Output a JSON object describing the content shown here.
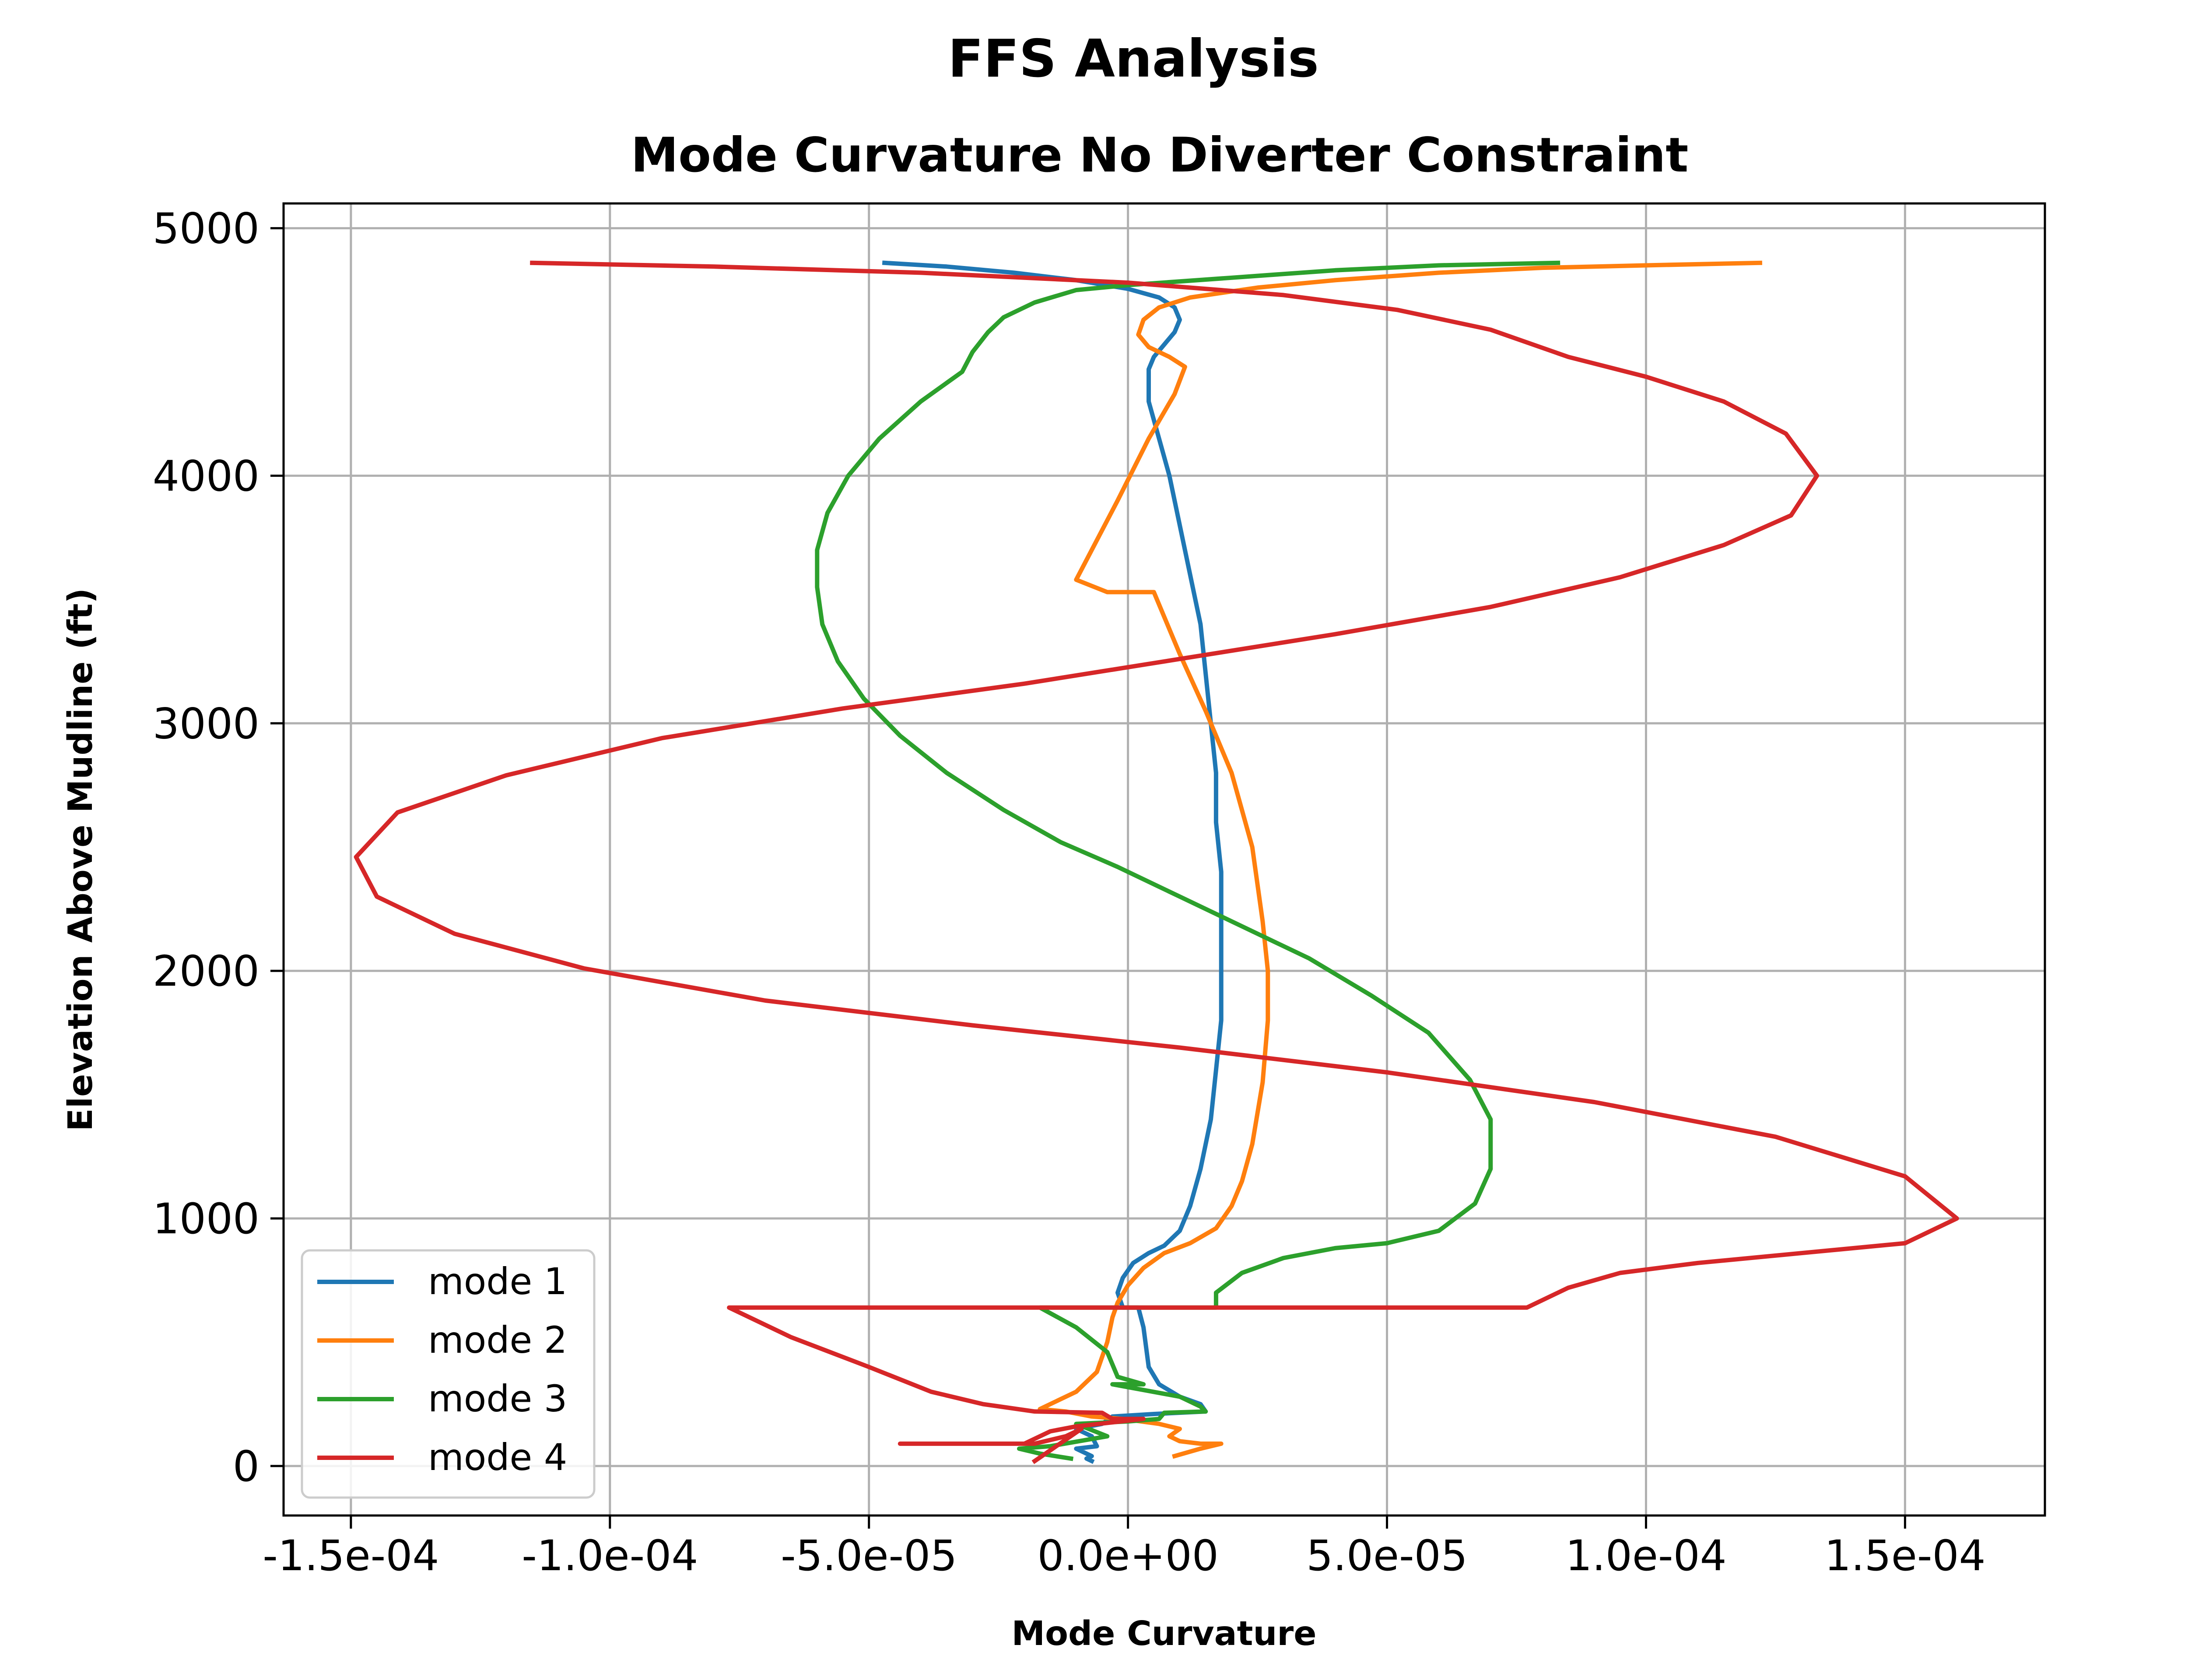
{
  "figure_title": "FFS Analysis",
  "chart_data": {
    "type": "line",
    "title": "Mode Curvature No Diverter Constraint",
    "xlabel": "Mode Curvature",
    "ylabel": "Elevation Above Mudline (ft)",
    "xlim": [
      -0.000163,
      0.000177
    ],
    "ylim": [
      -200,
      5100
    ],
    "xticks": [
      -0.00015,
      -0.0001,
      -5e-05,
      0,
      5e-05,
      0.0001,
      0.00015
    ],
    "xtick_labels": [
      "-1.5e-04",
      "-1.0e-04",
      "-5.0e-05",
      "0.0e+00",
      "5.0e-05",
      "1.0e-04",
      "1.5e-04"
    ],
    "yticks": [
      0,
      1000,
      2000,
      3000,
      4000,
      5000
    ],
    "ytick_labels": [
      "0",
      "1000",
      "2000",
      "3000",
      "4000",
      "5000"
    ],
    "grid": true,
    "legend_position": "lower-left",
    "series": [
      {
        "name": "mode 1",
        "color": "#1f77b4",
        "points": [
          [
            -4.7e-05,
            4860
          ],
          [
            -3.5e-05,
            4845
          ],
          [
            -2.2e-05,
            4820
          ],
          [
            -1e-05,
            4790
          ],
          [
            0.0,
            4755
          ],
          [
            6e-06,
            4720
          ],
          [
            9e-06,
            4680
          ],
          [
            1e-05,
            4630
          ],
          [
            9e-06,
            4580
          ],
          [
            7e-06,
            4530
          ],
          [
            5e-06,
            4480
          ],
          [
            4e-06,
            4430
          ],
          [
            4e-06,
            4380
          ],
          [
            4e-06,
            4300
          ],
          [
            6e-06,
            4150
          ],
          [
            8e-06,
            4000
          ],
          [
            1e-05,
            3800
          ],
          [
            1.2e-05,
            3600
          ],
          [
            1.4e-05,
            3400
          ],
          [
            1.5e-05,
            3200
          ],
          [
            1.6e-05,
            3000
          ],
          [
            1.7e-05,
            2800
          ],
          [
            1.7e-05,
            2600
          ],
          [
            1.8e-05,
            2400
          ],
          [
            1.8e-05,
            2200
          ],
          [
            1.8e-05,
            2000
          ],
          [
            1.8e-05,
            1800
          ],
          [
            1.7e-05,
            1600
          ],
          [
            1.6e-05,
            1400
          ],
          [
            1.4e-05,
            1200
          ],
          [
            1.2e-05,
            1050
          ],
          [
            1e-05,
            950
          ],
          [
            7e-06,
            890
          ],
          [
            4e-06,
            860
          ],
          [
            1e-06,
            820
          ],
          [
            -1e-06,
            760
          ],
          [
            -2e-06,
            700
          ],
          [
            -1e-06,
            640
          ],
          [
            2e-06,
            640
          ],
          [
            3e-06,
            560
          ],
          [
            4e-06,
            400
          ],
          [
            6e-06,
            330
          ],
          [
            1e-05,
            280
          ],
          [
            1.4e-05,
            250
          ],
          [
            1.5e-05,
            220
          ],
          [
            5e-06,
            210
          ],
          [
            -3e-06,
            200
          ],
          [
            -5e-06,
            170
          ],
          [
            -1e-05,
            150
          ],
          [
            -7e-06,
            120
          ],
          [
            -6e-06,
            80
          ],
          [
            -1e-05,
            70
          ],
          [
            -7e-06,
            40
          ],
          [
            -8e-06,
            30
          ],
          [
            -7e-06,
            20
          ]
        ]
      },
      {
        "name": "mode 2",
        "color": "#ff7f0e",
        "points": [
          [
            0.000122,
            4860
          ],
          [
            0.0001,
            4850
          ],
          [
            8e-05,
            4840
          ],
          [
            6e-05,
            4820
          ],
          [
            4e-05,
            4790
          ],
          [
            2.5e-05,
            4760
          ],
          [
            1.2e-05,
            4720
          ],
          [
            6e-06,
            4680
          ],
          [
            3e-06,
            4630
          ],
          [
            2e-06,
            4570
          ],
          [
            4e-06,
            4520
          ],
          [
            8e-06,
            4480
          ],
          [
            1.1e-05,
            4440
          ],
          [
            9e-06,
            4330
          ],
          [
            4e-06,
            4150
          ],
          [
            -2e-06,
            3900
          ],
          [
            -7e-06,
            3700
          ],
          [
            -1e-05,
            3580
          ],
          [
            -4e-06,
            3530
          ],
          [
            5e-06,
            3530
          ],
          [
            1e-05,
            3280
          ],
          [
            1.5e-05,
            3050
          ],
          [
            2e-05,
            2800
          ],
          [
            2.4e-05,
            2500
          ],
          [
            2.6e-05,
            2200
          ],
          [
            2.7e-05,
            2000
          ],
          [
            2.7e-05,
            1800
          ],
          [
            2.6e-05,
            1550
          ],
          [
            2.4e-05,
            1300
          ],
          [
            2.2e-05,
            1150
          ],
          [
            2e-05,
            1050
          ],
          [
            1.7e-05,
            960
          ],
          [
            1.2e-05,
            900
          ],
          [
            7e-06,
            860
          ],
          [
            3e-06,
            800
          ],
          [
            0.0,
            730
          ],
          [
            -2e-06,
            660
          ],
          [
            -3e-06,
            600
          ],
          [
            -4e-06,
            500
          ],
          [
            -6e-06,
            380
          ],
          [
            -1e-05,
            300
          ],
          [
            -1.7e-05,
            230
          ],
          [
            -1.2e-05,
            220
          ],
          [
            -7e-06,
            200
          ],
          [
            -1e-06,
            190
          ],
          [
            6e-06,
            170
          ],
          [
            1e-05,
            150
          ],
          [
            8e-06,
            120
          ],
          [
            1e-05,
            100
          ],
          [
            1.4e-05,
            90
          ],
          [
            1.8e-05,
            90
          ],
          [
            1.4e-05,
            70
          ],
          [
            9e-06,
            40
          ]
        ]
      },
      {
        "name": "mode 3",
        "color": "#2ca02c",
        "points": [
          [
            8.3e-05,
            4860
          ],
          [
            6e-05,
            4850
          ],
          [
            4e-05,
            4830
          ],
          [
            2e-05,
            4800
          ],
          [
            0.0,
            4770
          ],
          [
            -1e-05,
            4750
          ],
          [
            -1.8e-05,
            4700
          ],
          [
            -2.4e-05,
            4640
          ],
          [
            -2.7e-05,
            4580
          ],
          [
            -3e-05,
            4500
          ],
          [
            -3.2e-05,
            4420
          ],
          [
            -4e-05,
            4300
          ],
          [
            -4.8e-05,
            4150
          ],
          [
            -5.4e-05,
            4000
          ],
          [
            -5.8e-05,
            3850
          ],
          [
            -6e-05,
            3700
          ],
          [
            -6e-05,
            3550
          ],
          [
            -5.9e-05,
            3400
          ],
          [
            -5.6e-05,
            3250
          ],
          [
            -5.1e-05,
            3100
          ],
          [
            -4.4e-05,
            2950
          ],
          [
            -3.5e-05,
            2800
          ],
          [
            -2.4e-05,
            2650
          ],
          [
            -1.3e-05,
            2520
          ],
          [
            -2e-06,
            2420
          ],
          [
            1e-05,
            2300
          ],
          [
            2.2e-05,
            2180
          ],
          [
            3.5e-05,
            2050
          ],
          [
            4.7e-05,
            1900
          ],
          [
            5.8e-05,
            1750
          ],
          [
            6.6e-05,
            1560
          ],
          [
            7e-05,
            1400
          ],
          [
            7e-05,
            1200
          ],
          [
            6.7e-05,
            1060
          ],
          [
            6e-05,
            950
          ],
          [
            5e-05,
            900
          ],
          [
            4e-05,
            880
          ],
          [
            3e-05,
            840
          ],
          [
            2.2e-05,
            780
          ],
          [
            1.7e-05,
            700
          ],
          [
            1.7e-05,
            640
          ],
          [
            -1.7e-05,
            640
          ],
          [
            -1e-05,
            560
          ],
          [
            -4e-06,
            460
          ],
          [
            -2e-06,
            360
          ],
          [
            3e-06,
            330
          ],
          [
            -3e-06,
            330
          ],
          [
            1e-05,
            280
          ],
          [
            1.4e-05,
            240
          ],
          [
            1.5e-05,
            220
          ],
          [
            7e-06,
            215
          ],
          [
            6e-06,
            190
          ],
          [
            0.0,
            180
          ],
          [
            -1e-05,
            170
          ],
          [
            -4e-06,
            120
          ],
          [
            -1.5e-05,
            80
          ],
          [
            -2.1e-05,
            70
          ],
          [
            -1.7e-05,
            50
          ],
          [
            -1.1e-05,
            30
          ]
        ]
      },
      {
        "name": "mode 4",
        "color": "#d62728",
        "points": [
          [
            -0.000115,
            4860
          ],
          [
            -8e-05,
            4845
          ],
          [
            -4e-05,
            4820
          ],
          [
            0.0,
            4780
          ],
          [
            3e-05,
            4730
          ],
          [
            5.2e-05,
            4670
          ],
          [
            7e-05,
            4590
          ],
          [
            8.5e-05,
            4480
          ],
          [
            0.0001,
            4400
          ],
          [
            0.000115,
            4300
          ],
          [
            0.000127,
            4170
          ],
          [
            0.000133,
            4000
          ],
          [
            0.000128,
            3840
          ],
          [
            0.000115,
            3720
          ],
          [
            9.5e-05,
            3590
          ],
          [
            7e-05,
            3470
          ],
          [
            4e-05,
            3360
          ],
          [
            1e-05,
            3260
          ],
          [
            -2e-05,
            3160
          ],
          [
            -5.5e-05,
            3060
          ],
          [
            -9e-05,
            2940
          ],
          [
            -0.00012,
            2790
          ],
          [
            -0.000141,
            2640
          ],
          [
            -0.000149,
            2460
          ],
          [
            -0.000145,
            2300
          ],
          [
            -0.00013,
            2150
          ],
          [
            -0.000105,
            2010
          ],
          [
            -7e-05,
            1880
          ],
          [
            -3e-05,
            1780
          ],
          [
            1e-05,
            1690
          ],
          [
            5e-05,
            1590
          ],
          [
            9e-05,
            1470
          ],
          [
            0.000125,
            1330
          ],
          [
            0.00015,
            1170
          ],
          [
            0.00016,
            1000
          ],
          [
            0.00015,
            900
          ],
          [
            0.00013,
            860
          ],
          [
            0.00011,
            820
          ],
          [
            9.5e-05,
            780
          ],
          [
            8.5e-05,
            720
          ],
          [
            7.7e-05,
            640
          ],
          [
            -7.7e-05,
            640
          ],
          [
            -6.5e-05,
            520
          ],
          [
            -5e-05,
            400
          ],
          [
            -3.8e-05,
            300
          ],
          [
            -2.8e-05,
            250
          ],
          [
            -1.8e-05,
            220
          ],
          [
            -5e-06,
            215
          ],
          [
            -3e-06,
            190
          ],
          [
            3e-06,
            190
          ],
          [
            -1e-05,
            160
          ],
          [
            -1.5e-05,
            140
          ],
          [
            -2e-05,
            90
          ],
          [
            -4.4e-05,
            90
          ],
          [
            -1.8e-05,
            90
          ],
          [
            -1.2e-05,
            120
          ],
          [
            -1e-05,
            140
          ],
          [
            -9e-06,
            150
          ],
          [
            -1.8e-05,
            20
          ]
        ]
      }
    ]
  }
}
